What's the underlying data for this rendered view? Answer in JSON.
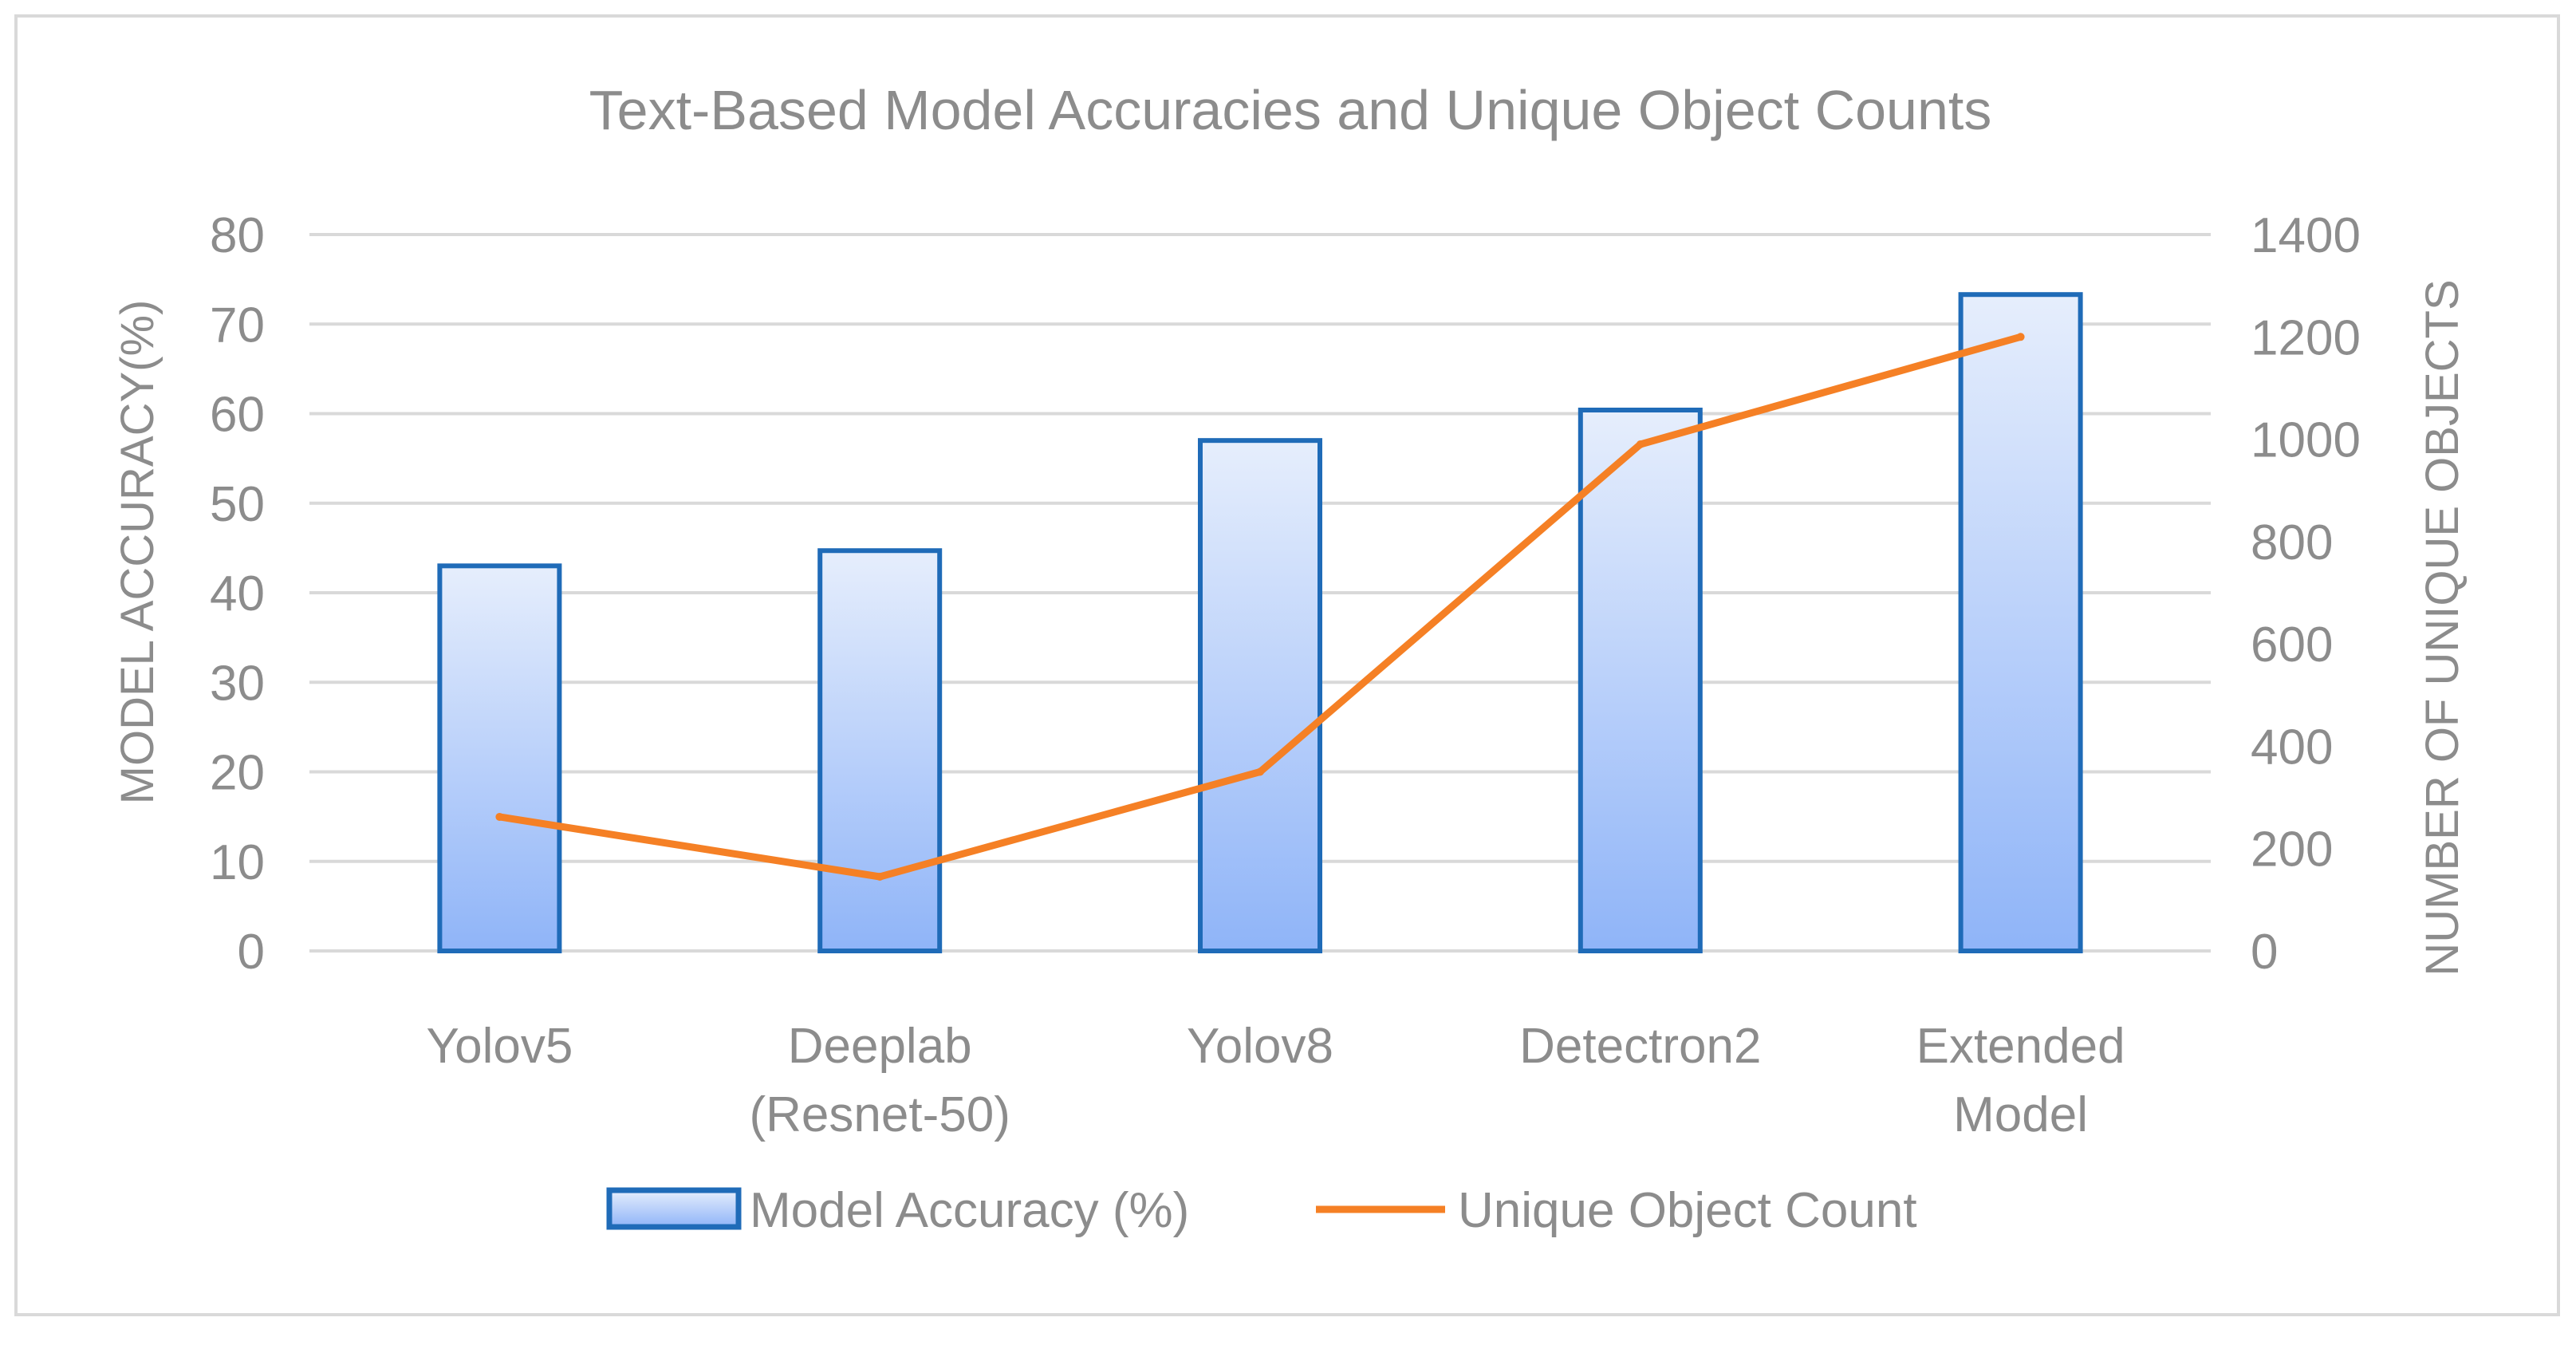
{
  "chart_data": {
    "type": "bar",
    "title": "Text-Based Model Accuracies and Unique Object Counts",
    "categories": [
      "Yolov5",
      "Deeplab (Resnet-50)",
      "Yolov8",
      "Detectron2",
      "Extended Model"
    ],
    "category_lines": [
      [
        "Yolov5"
      ],
      [
        "Deeplab",
        "(Resnet-50)"
      ],
      [
        "Yolov8"
      ],
      [
        "Detectron2"
      ],
      [
        "Extended",
        "Model"
      ]
    ],
    "series": [
      {
        "name": "Model Accuracy (%)",
        "type": "bar",
        "axis": "left",
        "values": [
          43,
          44.7,
          57,
          60.4,
          73.3
        ],
        "color": "#1f6bb8",
        "fill_top": "#e6eefc",
        "fill_bottom": "#8fb4f8"
      },
      {
        "name": "Unique Object Count",
        "type": "line",
        "axis": "right",
        "values": [
          262,
          145,
          350,
          990,
          1200
        ],
        "color": "#f58025"
      }
    ],
    "ylabel": "MODEL ACCURACY(%)",
    "ylabel_right": "NUMBER OF UNIQUE OBJECTS",
    "ylim": [
      0,
      80
    ],
    "ylim_right": [
      0,
      1400
    ],
    "yticks": [
      0,
      10,
      20,
      30,
      40,
      50,
      60,
      70,
      80
    ],
    "yticks_right": [
      0,
      200,
      400,
      600,
      800,
      1000,
      1200,
      1400
    ],
    "grid": true,
    "legend_position": "bottom",
    "gridline_color": "#d9d9d9"
  }
}
